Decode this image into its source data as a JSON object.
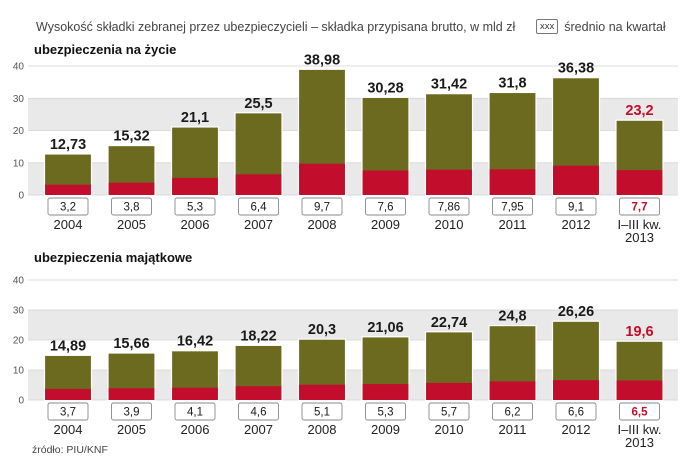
{
  "header": {
    "title": "Wysokość składki zebranej przez ubezpieczycieli – składka przypisana brutto, w mld zł",
    "legend_box": "xxx",
    "legend_label": "średnio na kwartał"
  },
  "source": "źródło: PIU/KNF",
  "colors": {
    "total": "#6b6a1f",
    "quarterly": "#c30d2c",
    "band": "#e9e9e9",
    "highlight_label": "#c30d2c",
    "label_text": "#1a1a1a"
  },
  "chart_data": [
    {
      "type": "bar",
      "title": "ubezpieczenia na życie",
      "categories": [
        "2004",
        "2005",
        "2006",
        "2007",
        "2008",
        "2009",
        "2010",
        "2011",
        "2012",
        "I–III kw. 2013"
      ],
      "category_lines": [
        [
          "2004"
        ],
        [
          "2005"
        ],
        [
          "2006"
        ],
        [
          "2007"
        ],
        [
          "2008"
        ],
        [
          "2009"
        ],
        [
          "2010"
        ],
        [
          "2011"
        ],
        [
          "2012"
        ],
        [
          "I–III kw.",
          "2013"
        ]
      ],
      "series": [
        {
          "name": "składka przypisana brutto",
          "values": [
            12.73,
            15.32,
            21.1,
            25.5,
            38.98,
            30.28,
            31.42,
            31.8,
            36.38,
            23.2
          ],
          "labels": [
            "12,73",
            "15,32",
            "21,1",
            "25,5",
            "38,98",
            "30,28",
            "31,42",
            "31,8",
            "36,38",
            "23,2"
          ]
        },
        {
          "name": "średnio na kwartał",
          "values": [
            3.2,
            3.8,
            5.3,
            6.4,
            9.7,
            7.6,
            7.86,
            7.95,
            9.1,
            7.7
          ],
          "labels": [
            "3,2",
            "3,8",
            "5,3",
            "6,4",
            "9,7",
            "7,6",
            "7,86",
            "7,95",
            "9,1",
            "7,7"
          ]
        }
      ],
      "yticks": [
        0,
        10,
        20,
        30,
        40
      ],
      "ylim": [
        0,
        40
      ],
      "highlight_index": 9
    },
    {
      "type": "bar",
      "title": "ubezpieczenia majątkowe",
      "categories": [
        "2004",
        "2005",
        "2006",
        "2007",
        "2008",
        "2009",
        "2010",
        "2011",
        "2012",
        "I–III kw. 2013"
      ],
      "category_lines": [
        [
          "2004"
        ],
        [
          "2005"
        ],
        [
          "2006"
        ],
        [
          "2007"
        ],
        [
          "2008"
        ],
        [
          "2009"
        ],
        [
          "2010"
        ],
        [
          "2011"
        ],
        [
          "2012"
        ],
        [
          "I–III kw.",
          "2013"
        ]
      ],
      "series": [
        {
          "name": "składka przypisana brutto",
          "values": [
            14.89,
            15.66,
            16.42,
            18.22,
            20.3,
            21.06,
            22.74,
            24.8,
            26.26,
            19.6
          ],
          "labels": [
            "14,89",
            "15,66",
            "16,42",
            "18,22",
            "20,3",
            "21,06",
            "22,74",
            "24,8",
            "26,26",
            "19,6"
          ]
        },
        {
          "name": "średnio na kwartał",
          "values": [
            3.7,
            3.9,
            4.1,
            4.6,
            5.1,
            5.3,
            5.7,
            6.2,
            6.6,
            6.5
          ],
          "labels": [
            "3,7",
            "3,9",
            "4,1",
            "4,6",
            "5,1",
            "5,3",
            "5,7",
            "6,2",
            "6,6",
            "6,5"
          ]
        }
      ],
      "yticks": [
        0,
        10,
        20,
        30,
        40
      ],
      "ylim": [
        0,
        40
      ],
      "highlight_index": 9
    }
  ]
}
